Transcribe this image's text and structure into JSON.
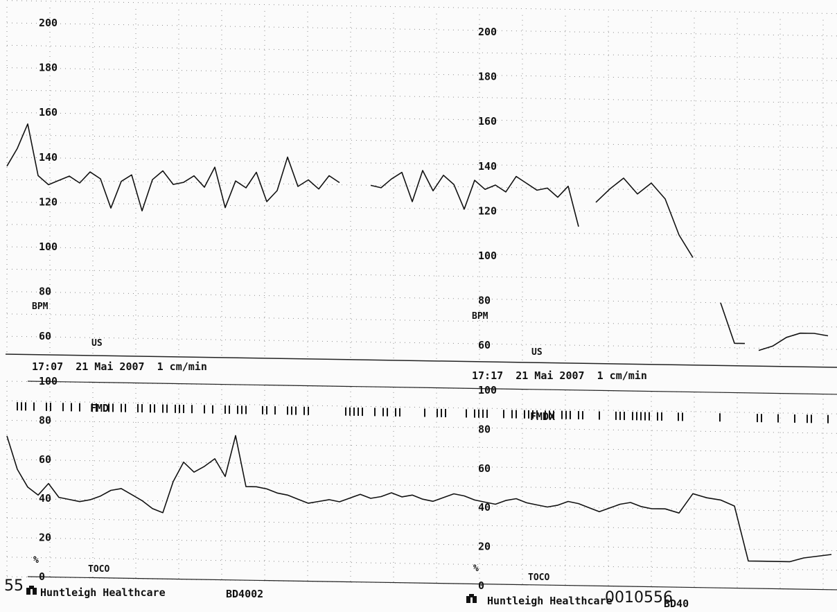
{
  "chart_data": [
    {
      "type": "line",
      "panel": "fetal_heart_rate",
      "ylabel": "BPM",
      "transducer_label": "US",
      "ylim": [
        50,
        210
      ],
      "y_ticks_left": [
        "200",
        "180",
        "160",
        "140",
        "120",
        "100",
        "80",
        "60"
      ],
      "y_ticks_right": [
        "200",
        "180",
        "160",
        "140",
        "120",
        "100",
        "80",
        "60"
      ],
      "grid": true,
      "start_time": "17:07",
      "timestamp_left": "17:07  21 Mai 2007  1 cm/min",
      "timestamp_right": "17:17  21 Mai 2007  1 cm/min",
      "x_unit": "min",
      "series": [
        {
          "x": [
            0,
            0.3,
            0.6,
            0.9,
            1.2,
            1.5,
            1.8,
            2.1,
            2.4,
            2.7,
            3.0,
            3.3,
            3.6,
            3.9,
            4.2,
            4.5,
            4.8,
            5.1,
            5.4,
            5.7,
            6.0,
            6.3,
            6.6,
            6.9,
            7.2,
            7.5,
            7.8,
            8.1,
            8.4,
            8.7,
            9.0,
            9.3,
            9.6,
            9.9,
            10.2,
            10.5,
            10.8,
            11.1,
            11.4,
            11.7,
            12.0,
            12.3,
            12.6,
            12.9,
            13.2,
            13.5,
            13.8,
            14.1,
            14.4,
            14.7,
            15.0,
            15.3,
            15.6,
            15.9,
            16.2,
            16.5
          ],
          "values": [
            136,
            144,
            155,
            132,
            128,
            130,
            132,
            129,
            134,
            131,
            118,
            130,
            133,
            117,
            131,
            135,
            129,
            130,
            133,
            128,
            137,
            119,
            131,
            128,
            135,
            122,
            127,
            142,
            129,
            132,
            128,
            134,
            131,
            null,
            null,
            130,
            129,
            133,
            136,
            123,
            137,
            128,
            135,
            131,
            120,
            133,
            129,
            131,
            128,
            135,
            132,
            129,
            130,
            126,
            131,
            113
          ]
        },
        {
          "x": [
            17.0,
            17.4,
            17.8,
            18.2,
            18.6,
            19.0,
            19.4,
            19.8,
            20.2,
            20.6,
            21.0,
            21.3
          ],
          "values": [
            124,
            130,
            135,
            128,
            133,
            126,
            110,
            100,
            null,
            80,
            62,
            62
          ]
        },
        {
          "x": [
            21.7,
            22.1,
            22.5,
            22.9,
            23.3,
            23.7
          ],
          "values": [
            59,
            61,
            65,
            67,
            67,
            66
          ]
        }
      ]
    },
    {
      "type": "line",
      "panel": "uterine_activity",
      "ylabel": "%",
      "transducer_label": "TOCO",
      "ylim": [
        0,
        100
      ],
      "y_ticks_left": [
        "100",
        "80",
        "60",
        "40",
        "20",
        "0"
      ],
      "y_ticks_right": [
        "100",
        "80",
        "60",
        "40",
        "20",
        "0"
      ],
      "grid": true,
      "event_marker_text": "FMD",
      "event_marker_text_right": "FMDX",
      "x_unit": "min",
      "series": [
        {
          "x": [
            0,
            0.3,
            0.6,
            0.9,
            1.2,
            1.5,
            1.8,
            2.1,
            2.4,
            2.7,
            3.0,
            3.3,
            3.6,
            3.9,
            4.2,
            4.5,
            4.8,
            5.1,
            5.4,
            5.7,
            6.0,
            6.3,
            6.6,
            6.9,
            7.2,
            7.5,
            7.8,
            8.1,
            8.4,
            8.7,
            9.0,
            9.3,
            9.6,
            9.9,
            10.2,
            10.5,
            10.8,
            11.1,
            11.4,
            11.7,
            12.0,
            12.3,
            12.6,
            12.9,
            13.2,
            13.5,
            13.8,
            14.1,
            14.4,
            14.7,
            15.0,
            15.3,
            15.6,
            15.9,
            16.2,
            16.5,
            16.8,
            17.1,
            17.4,
            17.7,
            18.0,
            18.3,
            18.6,
            19.0,
            19.4,
            19.8,
            20.2,
            20.6,
            21.0,
            21.4,
            21.8,
            22.2,
            22.6,
            23.0,
            23.4,
            23.8
          ],
          "values": [
            72,
            55,
            46,
            42,
            48,
            41,
            40,
            39,
            40,
            42,
            45,
            46,
            43,
            40,
            36,
            34,
            50,
            60,
            55,
            58,
            62,
            53,
            74,
            48,
            48,
            47,
            45,
            44,
            42,
            40,
            41,
            42,
            41,
            43,
            45,
            43,
            44,
            46,
            44,
            45,
            43,
            42,
            44,
            46,
            45,
            43,
            42,
            41,
            43,
            44,
            42,
            41,
            40,
            41,
            43,
            42,
            40,
            38,
            40,
            42,
            43,
            41,
            40,
            40,
            38,
            48,
            46,
            45,
            42,
            14,
            14,
            14,
            14,
            16,
            17,
            18
          ]
        }
      ]
    }
  ],
  "footer": {
    "left_page_number": "55",
    "brand_left": "Huntleigh Healthcare",
    "model_left": "BD4002",
    "brand_right": "Huntleigh Healthcare",
    "model_right": "BD40",
    "serial": "0010556"
  }
}
